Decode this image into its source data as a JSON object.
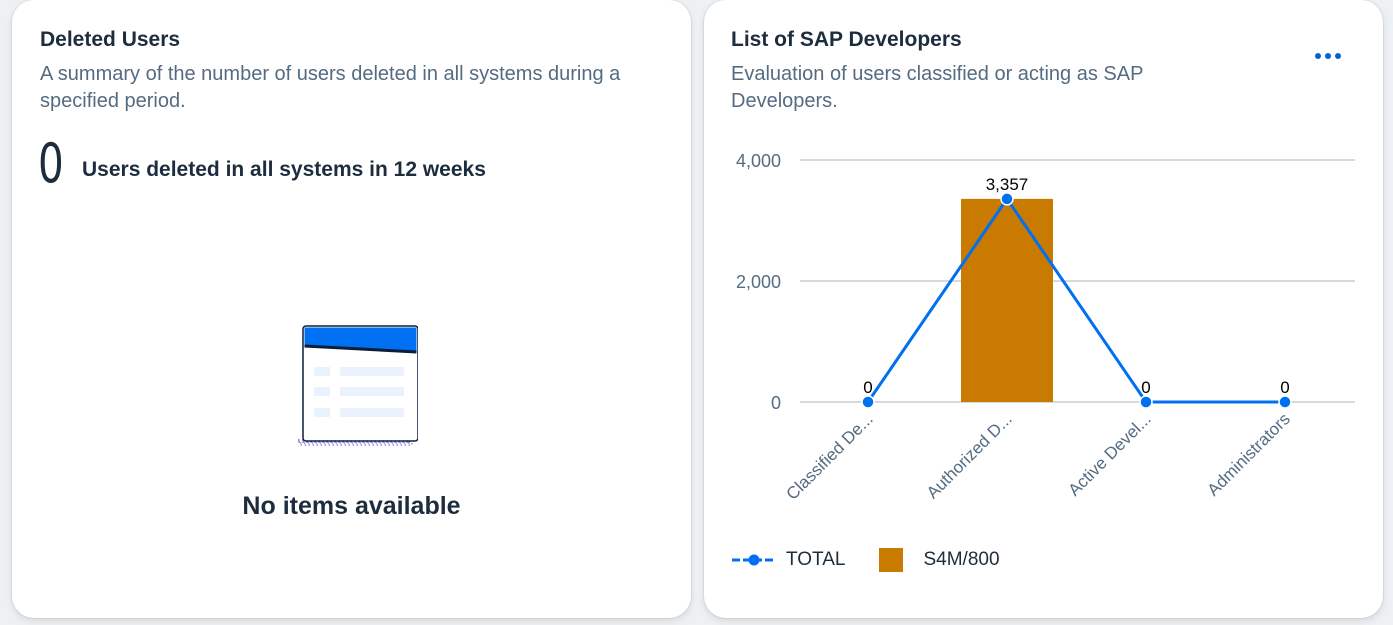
{
  "deleted_users_card": {
    "title": "Deleted Users",
    "subtitle": "A summary of the number of users deleted in all systems during a specified period.",
    "kpi_value": "0",
    "kpi_label": "Users deleted in all systems in 12 weeks",
    "empty_message": "No items available",
    "illustration_icon": "empty-table-icon"
  },
  "sap_developers_card": {
    "title": "List of SAP Developers",
    "subtitle": "Evaluation of users classified or acting as SAP Developers.",
    "more_icon": "overflow-menu-icon",
    "legend": {
      "line_label": "TOTAL",
      "bar_label": "S4M/800"
    }
  },
  "colors": {
    "line": "#0070f2",
    "bar": "#c87b00",
    "grid": "#a9b4be",
    "axis_text": "#556b82"
  },
  "chart_data": {
    "type": "bar",
    "categories": [
      "Classified De...",
      "Authorized D...",
      "Active Devel...",
      "Administrators"
    ],
    "y_ticks": [
      0,
      2000,
      4000
    ],
    "y_tick_labels": [
      "0",
      "2,000",
      "4,000"
    ],
    "ylim": [
      0,
      4000
    ],
    "grid": true,
    "legend_position": "bottom-left",
    "series": [
      {
        "name": "TOTAL",
        "type": "line",
        "values": [
          0,
          3357,
          0,
          0
        ],
        "labels": [
          "0",
          "3,357",
          "0",
          "0"
        ]
      },
      {
        "name": "S4M/800",
        "type": "bar",
        "values": [
          0,
          3357,
          0,
          0
        ]
      }
    ]
  }
}
